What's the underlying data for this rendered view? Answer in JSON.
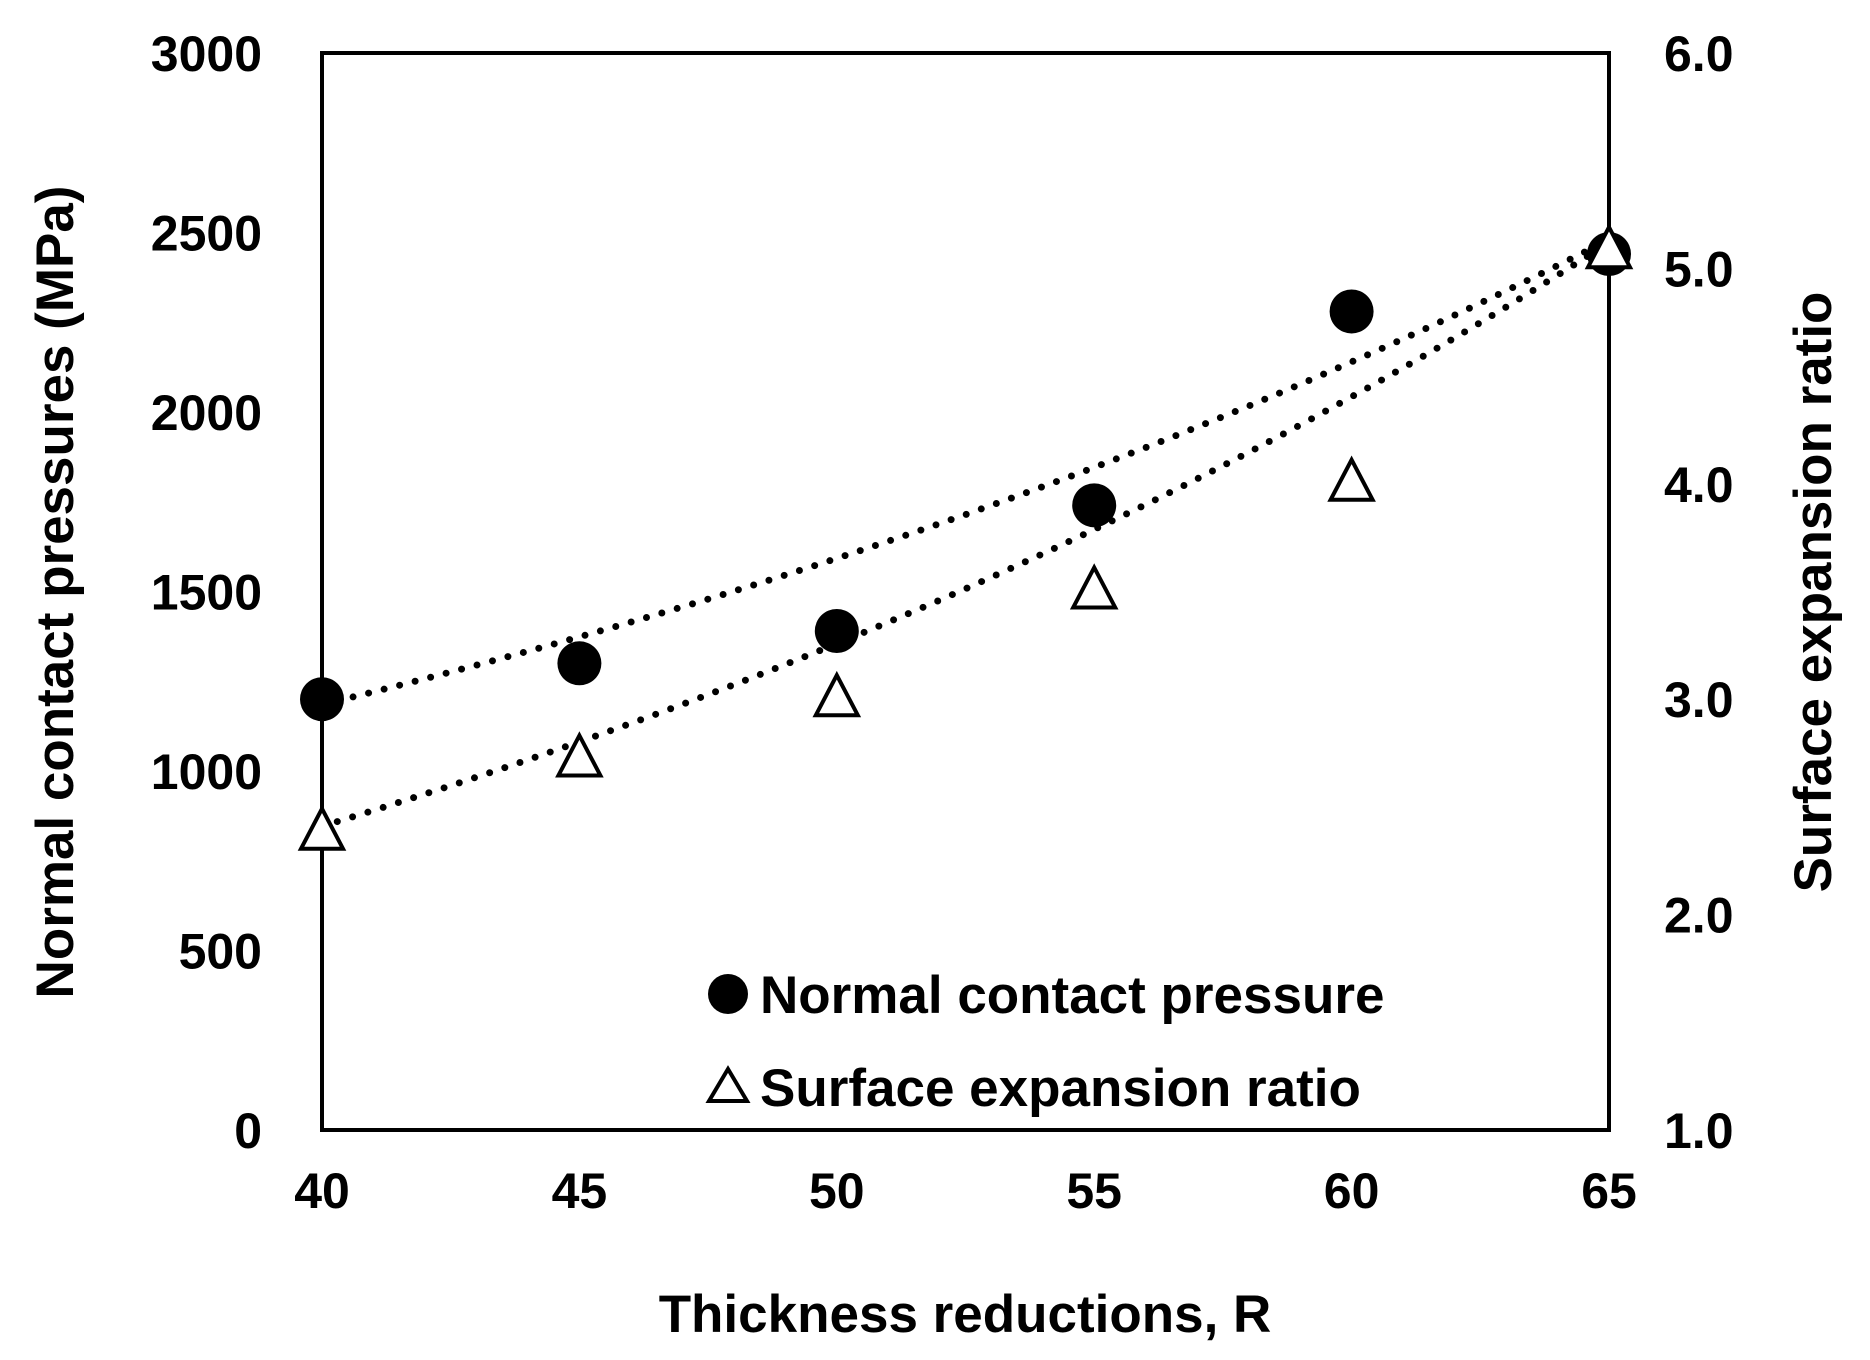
{
  "chart_data": {
    "type": "scatter",
    "title": "",
    "xlabel": "Thickness reductions, R",
    "ylabel_left": "Normal contact pressures (MPa)",
    "ylabel_right": "Surface expansion ratio",
    "xlim": [
      40,
      65
    ],
    "ylim_left": [
      0,
      3000
    ],
    "ylim_right": [
      1.0,
      6.0
    ],
    "x_ticks": [
      "40",
      "45",
      "50",
      "55",
      "60",
      "65"
    ],
    "y_left_ticks": [
      "0",
      "500",
      "1000",
      "1500",
      "2000",
      "2500",
      "3000"
    ],
    "y_right_ticks": [
      "1.0",
      "2.0",
      "3.0",
      "4.0",
      "5.0",
      "6.0"
    ],
    "grid": false,
    "legend_position": "bottom-right",
    "series": [
      {
        "name": "Normal contact pressure",
        "axis": "left",
        "marker": "filled-circle",
        "color": "#000000",
        "x": [
          40,
          45,
          50,
          55,
          60,
          65
        ],
        "y": [
          1200,
          1300,
          1390,
          1740,
          2280,
          2440
        ],
        "trendline": {
          "type": "dotted",
          "from": [
            40,
            1185
          ],
          "to": [
            65,
            2480
          ]
        }
      },
      {
        "name": "Surface expansion ratio",
        "axis": "right",
        "marker": "open-triangle",
        "color": "#000000",
        "x": [
          40,
          45,
          50,
          55,
          60,
          65
        ],
        "y": [
          2.38,
          2.72,
          3.0,
          3.5,
          4.0,
          5.08
        ],
        "trendline": {
          "type": "dotted",
          "from": [
            40,
            2.41
          ],
          "to": [
            65,
            5.12
          ]
        }
      }
    ]
  }
}
